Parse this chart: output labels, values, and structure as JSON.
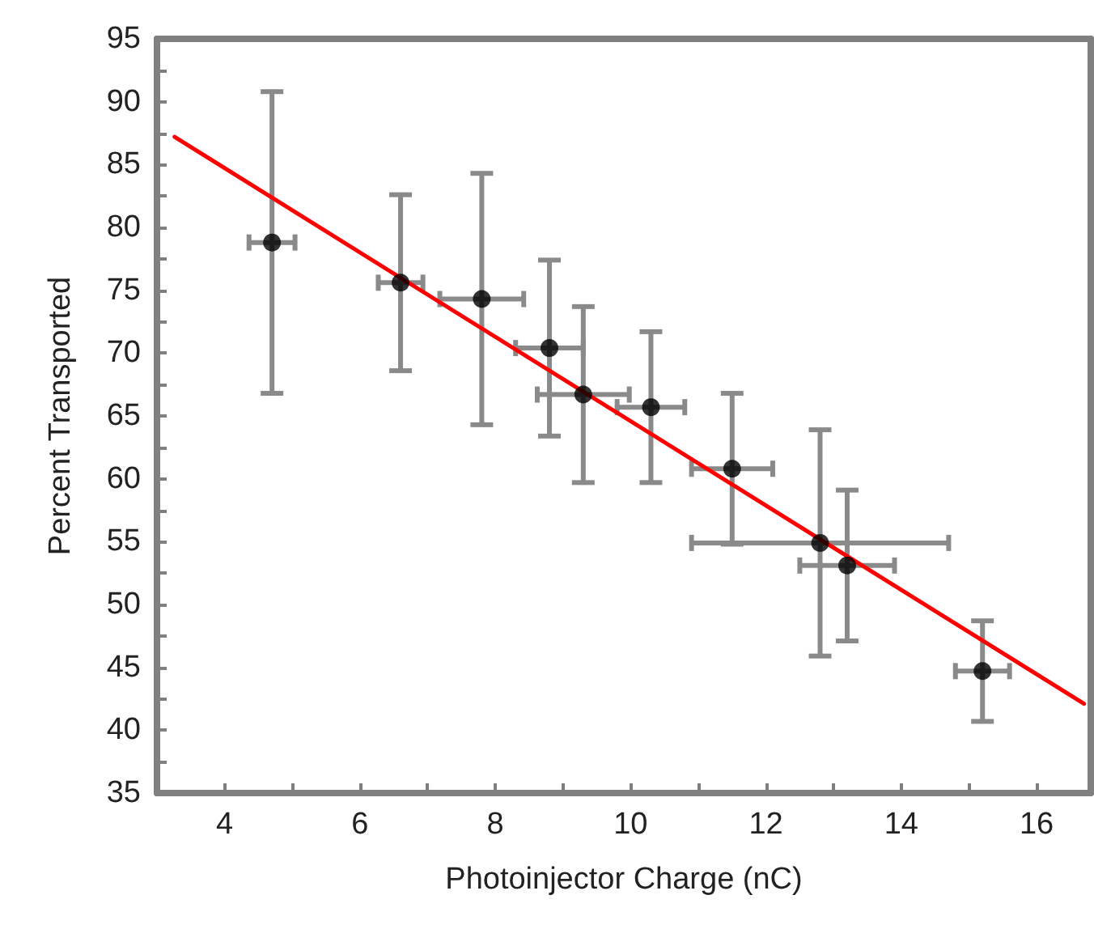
{
  "chart_data": {
    "type": "scatter",
    "xlabel": "Photoinjector Charge (nC)",
    "ylabel": "Percent Transported",
    "xlim": [
      3,
      16.8
    ],
    "ylim": [
      35,
      95
    ],
    "xticks": [
      4,
      {
        "value": 5,
        "label": null
      },
      6,
      {
        "value": 7,
        "label": null
      },
      8,
      {
        "value": 9,
        "label": null
      },
      10,
      {
        "value": 11,
        "label": null
      },
      12,
      {
        "value": 13,
        "label": null
      },
      14,
      {
        "value": 15,
        "label": null
      },
      16
    ],
    "yticks": [
      35,
      {
        "value": 37.5,
        "label": null
      },
      40,
      {
        "value": 42.5,
        "label": null
      },
      45,
      {
        "value": 47.5,
        "label": null
      },
      50,
      {
        "value": 52.5,
        "label": null
      },
      55,
      {
        "value": 57.5,
        "label": null
      },
      60,
      {
        "value": 62.5,
        "label": null
      },
      65,
      {
        "value": 67.5,
        "label": null
      },
      70,
      {
        "value": 72.5,
        "label": null
      },
      75,
      {
        "value": 77.5,
        "label": null
      },
      80,
      {
        "value": 82.5,
        "label": null
      },
      85,
      {
        "value": 87.5,
        "label": null
      },
      90,
      {
        "value": 92.5,
        "label": null
      },
      95
    ],
    "grid": false,
    "series": [
      {
        "marker": "circle",
        "color": "#000000",
        "x": [
          4.7,
          6.6,
          7.8,
          8.8,
          9.3,
          10.3,
          11.5,
          12.8,
          13.2,
          15.2
        ],
        "values": [
          78.8,
          75.6,
          74.3,
          70.4,
          66.7,
          65.7,
          60.8,
          54.9,
          53.1,
          44.7
        ],
        "errors": [
          12,
          7,
          10,
          7,
          7,
          6,
          6,
          9,
          6,
          4
        ],
        "xerrors": [
          0.34,
          0.33,
          0.62,
          0.5,
          0.68,
          0.5,
          0.6,
          1.9,
          0.7,
          0.4
        ]
      },
      {
        "type": "line",
        "marker": "none",
        "color": "#ff0000",
        "x": [
          3.26,
          16.7
        ],
        "values": [
          87.2,
          42.1
        ]
      }
    ]
  }
}
